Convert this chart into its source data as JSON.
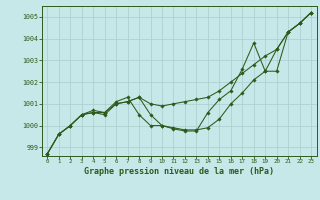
{
  "background_color": "#c6e8e8",
  "grid_color": "#a8cece",
  "line_color": "#2d5a1b",
  "marker_color": "#2d5a1b",
  "xlabel": "Graphe pression niveau de la mer (hPa)",
  "xlabel_fontsize": 6.0,
  "ylim": [
    998.6,
    1005.5
  ],
  "xlim": [
    -0.5,
    23.5
  ],
  "yticks": [
    999,
    1000,
    1001,
    1002,
    1003,
    1004,
    1005
  ],
  "xticks": [
    0,
    1,
    2,
    3,
    4,
    5,
    6,
    7,
    8,
    9,
    10,
    11,
    12,
    13,
    14,
    15,
    16,
    17,
    18,
    19,
    20,
    21,
    22,
    23
  ],
  "series1_x": [
    0,
    1,
    2,
    3,
    4,
    5,
    6,
    7,
    8,
    9,
    10,
    11,
    12,
    13,
    14,
    15,
    16,
    17,
    18,
    19,
    20,
    21,
    22,
    23
  ],
  "series1_y": [
    998.7,
    999.6,
    1000.0,
    1000.5,
    1000.6,
    1000.6,
    1001.0,
    1001.1,
    1001.3,
    1001.0,
    1000.9,
    1001.0,
    1001.1,
    1001.2,
    1001.3,
    1001.6,
    1002.0,
    1002.4,
    1002.8,
    1003.2,
    1003.5,
    1004.3,
    1004.7,
    1005.2
  ],
  "series2_x": [
    0,
    1,
    2,
    3,
    4,
    5,
    6,
    7,
    8,
    9,
    10,
    11,
    12,
    13,
    14,
    15,
    16,
    17,
    18,
    19,
    20,
    21,
    22,
    23
  ],
  "series2_y": [
    998.7,
    999.6,
    1000.0,
    1000.5,
    1000.6,
    1000.5,
    1001.0,
    1001.1,
    1001.3,
    1000.5,
    1000.0,
    999.9,
    999.8,
    999.8,
    999.9,
    1000.3,
    1001.0,
    1001.5,
    1002.1,
    1002.5,
    1003.5,
    1004.3,
    1004.7,
    1005.2
  ],
  "series3_x": [
    0,
    1,
    2,
    3,
    4,
    5,
    6,
    7,
    8,
    9,
    10,
    11,
    12,
    13,
    14,
    15,
    16,
    17,
    18,
    19,
    20,
    21,
    22,
    23
  ],
  "series3_y": [
    998.7,
    999.6,
    1000.0,
    1000.5,
    1000.7,
    1000.6,
    1001.1,
    1001.3,
    1000.5,
    1000.0,
    1000.0,
    999.85,
    999.75,
    999.75,
    1000.6,
    1001.2,
    1001.6,
    1002.6,
    1003.8,
    1002.5,
    1002.5,
    1004.3,
    1004.7,
    1005.2
  ]
}
